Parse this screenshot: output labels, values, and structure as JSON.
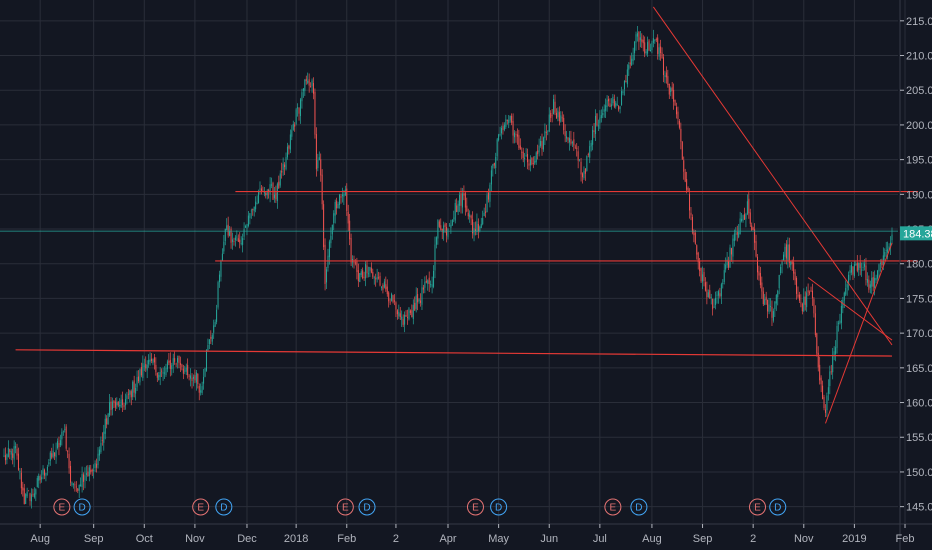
{
  "chart_data": {
    "type": "candlestick",
    "ylim": [
      142.5,
      218
    ],
    "y_ticks": [
      "215.00",
      "210.00",
      "205.00",
      "200.00",
      "195.00",
      "190.00",
      "185.00",
      "180.00",
      "175.00",
      "170.00",
      "165.00",
      "160.00",
      "155.00",
      "150.00",
      "145.00"
    ],
    "y_tick_values": [
      215,
      210,
      205,
      200,
      195,
      190,
      185,
      180,
      175,
      170,
      165,
      160,
      155,
      150,
      145
    ],
    "x_ticks": [
      "Aug",
      "Sep",
      "Oct",
      "Nov",
      "Dec",
      "2018",
      "Feb",
      "2",
      "Apr",
      "May",
      "Jun",
      "Jul",
      "Aug",
      "Sep",
      "2",
      "Nov",
      "2019",
      "Feb"
    ],
    "x_tick_index": [
      25,
      62,
      97,
      132,
      168,
      202,
      237,
      271,
      307,
      342,
      377,
      412,
      448,
      483,
      518,
      553,
      588,
      623
    ],
    "last_price": "184.38",
    "last_value": 184.38,
    "colors": {
      "up": "#26a69a",
      "down": "#ef5350",
      "background": "#131722",
      "grid": "#2a2e39",
      "drawing": "#e53935",
      "last_line": "#26a69a"
    },
    "price_path": [
      [
        0,
        152
      ],
      [
        8,
        153
      ],
      [
        14,
        146
      ],
      [
        20,
        147
      ],
      [
        30,
        151
      ],
      [
        38,
        154
      ],
      [
        42,
        156
      ],
      [
        46,
        149
      ],
      [
        50,
        148
      ],
      [
        56,
        150
      ],
      [
        62,
        150
      ],
      [
        68,
        155
      ],
      [
        74,
        160
      ],
      [
        80,
        159
      ],
      [
        86,
        161
      ],
      [
        92,
        163
      ],
      [
        98,
        166
      ],
      [
        104,
        165
      ],
      [
        110,
        164
      ],
      [
        116,
        166
      ],
      [
        122,
        166
      ],
      [
        128,
        163
      ],
      [
        132,
        164
      ],
      [
        136,
        162
      ],
      [
        140,
        167
      ],
      [
        146,
        172
      ],
      [
        150,
        181
      ],
      [
        154,
        185
      ],
      [
        158,
        183
      ],
      [
        164,
        184
      ],
      [
        172,
        188
      ],
      [
        180,
        191
      ],
      [
        188,
        190
      ],
      [
        194,
        194
      ],
      [
        200,
        200
      ],
      [
        206,
        204
      ],
      [
        210,
        207
      ],
      [
        214,
        205
      ],
      [
        216,
        193
      ],
      [
        218,
        196
      ],
      [
        220,
        188
      ],
      [
        222,
        178
      ],
      [
        226,
        185
      ],
      [
        230,
        189
      ],
      [
        236,
        190
      ],
      [
        240,
        181
      ],
      [
        246,
        178
      ],
      [
        250,
        179
      ],
      [
        256,
        178
      ],
      [
        262,
        177
      ],
      [
        268,
        175
      ],
      [
        272,
        172
      ],
      [
        278,
        172
      ],
      [
        284,
        174
      ],
      [
        290,
        176
      ],
      [
        296,
        178
      ],
      [
        300,
        186
      ],
      [
        306,
        185
      ],
      [
        312,
        188
      ],
      [
        318,
        190
      ],
      [
        324,
        185
      ],
      [
        330,
        186
      ],
      [
        334,
        189
      ],
      [
        340,
        196
      ],
      [
        344,
        200
      ],
      [
        350,
        201
      ],
      [
        354,
        198
      ],
      [
        358,
        196
      ],
      [
        364,
        194
      ],
      [
        370,
        196
      ],
      [
        376,
        200
      ],
      [
        380,
        203
      ],
      [
        386,
        200
      ],
      [
        390,
        198
      ],
      [
        396,
        196
      ],
      [
        400,
        193
      ],
      [
        404,
        195
      ],
      [
        408,
        200
      ],
      [
        414,
        202
      ],
      [
        420,
        204
      ],
      [
        426,
        203
      ],
      [
        432,
        208
      ],
      [
        438,
        213
      ],
      [
        444,
        211
      ],
      [
        450,
        212
      ],
      [
        454,
        210
      ],
      [
        458,
        206
      ],
      [
        462,
        204
      ],
      [
        466,
        200
      ],
      [
        470,
        194
      ],
      [
        476,
        185
      ],
      [
        482,
        178
      ],
      [
        488,
        175
      ],
      [
        492,
        174
      ],
      [
        498,
        178
      ],
      [
        504,
        183
      ],
      [
        510,
        186
      ],
      [
        514,
        188
      ],
      [
        518,
        184
      ],
      [
        522,
        178
      ],
      [
        526,
        174
      ],
      [
        532,
        173
      ],
      [
        538,
        181
      ],
      [
        542,
        182
      ],
      [
        548,
        176
      ],
      [
        552,
        174
      ],
      [
        558,
        176
      ],
      [
        562,
        168
      ],
      [
        566,
        160
      ],
      [
        568,
        159
      ],
      [
        574,
        168
      ],
      [
        578,
        172
      ],
      [
        584,
        178
      ],
      [
        588,
        180
      ],
      [
        594,
        180
      ],
      [
        598,
        177
      ],
      [
        602,
        178
      ],
      [
        608,
        181
      ],
      [
        614,
        184
      ]
    ],
    "hlines": [
      190.4,
      180.4,
      167.6
    ],
    "trendlines": [
      [
        [
          449,
          217
        ],
        [
          614,
          168.3
        ]
      ],
      [
        [
          568,
          157
        ],
        [
          614,
          183
        ]
      ],
      [
        [
          556,
          178
        ],
        [
          614,
          169
        ]
      ]
    ],
    "green_line": 184.7,
    "events": [
      {
        "label": "E",
        "index": 40,
        "kind": "earnings"
      },
      {
        "label": "D",
        "index": 54,
        "kind": "dividend"
      },
      {
        "label": "E",
        "index": 136,
        "kind": "earnings"
      },
      {
        "label": "D",
        "index": 152,
        "kind": "dividend"
      },
      {
        "label": "E",
        "index": 236,
        "kind": "earnings"
      },
      {
        "label": "D",
        "index": 251,
        "kind": "dividend"
      },
      {
        "label": "E",
        "index": 326,
        "kind": "earnings"
      },
      {
        "label": "D",
        "index": 342,
        "kind": "dividend"
      },
      {
        "label": "E",
        "index": 421,
        "kind": "earnings"
      },
      {
        "label": "D",
        "index": 439,
        "kind": "dividend"
      },
      {
        "label": "E",
        "index": 521,
        "kind": "earnings"
      },
      {
        "label": "D",
        "index": 535,
        "kind": "dividend"
      }
    ],
    "bar_count": 615
  }
}
